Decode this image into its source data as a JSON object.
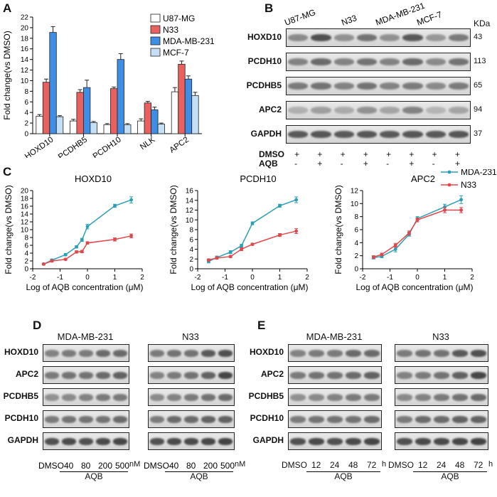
{
  "panels": {
    "a": "A",
    "b": "B",
    "c": "C",
    "d": "D",
    "e": "E"
  },
  "chart_data": [
    {
      "id": "A",
      "type": "bar",
      "ylabel": "Fold change(vs DMSO)",
      "xlabel": "",
      "ylim": [
        0,
        22
      ],
      "yticks": [
        0,
        2,
        4,
        6,
        8,
        10,
        12,
        14,
        16,
        18,
        20,
        22
      ],
      "categories": [
        "HOXD10",
        "PCDHB5",
        "PCDH10",
        "NLK",
        "APC2"
      ],
      "series": [
        {
          "name": "U87-MG",
          "color": "#ffffff",
          "values": [
            3.3,
            2.4,
            1.7,
            2.4,
            7.9
          ],
          "errors": [
            0.3,
            0.3,
            0.2,
            0.4,
            0.8
          ]
        },
        {
          "name": "N33",
          "color": "#e8615f",
          "values": [
            9.7,
            7.8,
            8.5,
            5.8,
            13.1
          ],
          "errors": [
            0.6,
            0.5,
            0.3,
            0.3,
            0.6
          ]
        },
        {
          "name": "MDA-MB-231",
          "color": "#3f8ee6",
          "values": [
            19.1,
            8.7,
            14.0,
            4.5,
            10.3
          ],
          "errors": [
            1.1,
            1.4,
            1.1,
            0.5,
            0.6
          ]
        },
        {
          "name": "MCF-7",
          "color": "#c5dff6",
          "values": [
            3.2,
            2.1,
            1.7,
            1.8,
            7.2
          ],
          "errors": [
            0.2,
            0.2,
            0.2,
            0.2,
            0.6
          ]
        }
      ]
    },
    {
      "id": "C1",
      "type": "line",
      "title": "HOXD10",
      "xlabel": "Log of AQB concentration (μM)",
      "ylabel": "Fold change(vs DMSO)",
      "xlim": [
        -2,
        2
      ],
      "xticks": [
        -2,
        -1,
        0,
        1,
        2
      ],
      "ylim": [
        0,
        20
      ],
      "yticks": [
        0,
        2,
        4,
        6,
        8,
        10,
        12,
        14,
        16,
        18,
        20
      ],
      "x": [
        -1.6,
        -1.3,
        -0.8,
        -0.4,
        -0.2,
        0,
        1,
        1.6
      ],
      "series": [
        {
          "name": "MDA-231",
          "color": "#2b9fb4",
          "values": [
            1.2,
            2.2,
            3.6,
            5.6,
            7.4,
            10.8,
            16.1,
            17.6
          ],
          "errors": [
            0.2,
            0.3,
            0.3,
            0.3,
            0.4,
            0.6,
            0.4,
            0.8
          ]
        },
        {
          "name": "N33",
          "color": "#e0474c",
          "values": [
            1.2,
            2.0,
            2.4,
            4.3,
            4.4,
            6.6,
            7.5,
            8.4
          ],
          "errors": [
            0.2,
            0.2,
            0.2,
            0.3,
            0.3,
            0.3,
            0.4,
            0.5
          ]
        }
      ]
    },
    {
      "id": "C2",
      "type": "line",
      "title": "PCDH10",
      "xlabel": "Log of AQB concentration (μM)",
      "ylabel": "Fold change(vs DMSO)",
      "xlim": [
        -2,
        2
      ],
      "xticks": [
        -2,
        -1,
        0,
        1,
        2
      ],
      "ylim": [
        0,
        16
      ],
      "yticks": [
        0,
        2,
        4,
        6,
        8,
        10,
        12,
        14,
        16
      ],
      "x": [
        -1.6,
        -1.3,
        -0.8,
        -0.4,
        0,
        1,
        1.6
      ],
      "series": [
        {
          "name": "MDA-231",
          "color": "#2b9fb4",
          "values": [
            1.5,
            2.3,
            3.4,
            4.7,
            9.3,
            12.9,
            14.1
          ],
          "errors": [
            0.3,
            0.3,
            0.3,
            0.3,
            0.3,
            0.3,
            0.6
          ]
        },
        {
          "name": "N33",
          "color": "#e0474c",
          "values": [
            1.8,
            2.2,
            2.5,
            4.0,
            5.0,
            6.9,
            7.7
          ],
          "errors": [
            0.2,
            0.2,
            0.2,
            0.3,
            0.2,
            0.3,
            0.5
          ]
        }
      ]
    },
    {
      "id": "C3",
      "type": "line",
      "title": "APC2",
      "xlabel": "Log of AQB concentration (μM)",
      "ylabel": "Fold change(vs DMSO)",
      "xlim": [
        -2,
        2
      ],
      "xticks": [
        -2,
        -1,
        0,
        1,
        2
      ],
      "ylim": [
        0,
        12
      ],
      "yticks": [
        0,
        2,
        4,
        6,
        8,
        10,
        12
      ],
      "x": [
        -1.6,
        -1.3,
        -0.8,
        -0.3,
        0,
        1,
        1.6
      ],
      "series": [
        {
          "name": "MDA-231",
          "color": "#2b9fb4",
          "values": [
            1.7,
            1.9,
            3.0,
            5.3,
            7.7,
            9.5,
            10.6
          ],
          "errors": [
            0.2,
            0.2,
            0.4,
            0.3,
            0.3,
            0.4,
            0.6
          ]
        },
        {
          "name": "N33",
          "color": "#e0474c",
          "values": [
            1.8,
            2.2,
            3.6,
            5.5,
            7.5,
            9.0,
            9.0
          ],
          "errors": [
            0.2,
            0.2,
            0.3,
            0.3,
            0.3,
            0.4,
            0.4
          ]
        }
      ]
    }
  ],
  "panel_b": {
    "cell_lines": [
      "U87-MG",
      "N33",
      "MDA-MB-231",
      "MCF-7"
    ],
    "kda_header": "KDa",
    "bands": [
      {
        "name": "HOXD10",
        "kda": "43"
      },
      {
        "name": "PCDH10",
        "kda": "113"
      },
      {
        "name": "PCDHB5",
        "kda": "65"
      },
      {
        "name": "APC2",
        "kda": "94"
      },
      {
        "name": "GAPDH",
        "kda": "37"
      }
    ],
    "row_labels": [
      "DMSO",
      "AQB"
    ],
    "dmso_marks": [
      "+",
      "+",
      "+",
      "+",
      "+",
      "+",
      "+",
      "+"
    ],
    "aqb_marks": [
      "-",
      "+",
      "-",
      "+",
      "-",
      "+",
      "-",
      "+"
    ]
  },
  "panel_d": {
    "groups": [
      "MDA-MB-231",
      "N33"
    ],
    "bands": [
      "HOXD10",
      "APC2",
      "PCDHB5",
      "PCDH10",
      "GAPDH"
    ],
    "lanes": [
      "DMSO",
      "40",
      "80",
      "200",
      "500"
    ],
    "unit": "nM",
    "treatment": "AQB"
  },
  "panel_e": {
    "groups": [
      "MDA-MB-231",
      "N33"
    ],
    "bands": [
      "HOXD10",
      "APC2",
      "PCDHB5",
      "PCDH10",
      "GAPDH"
    ],
    "lanes": [
      "DMSO",
      "12",
      "24",
      "48",
      "72"
    ],
    "unit": "h",
    "treatment": "AQB"
  }
}
